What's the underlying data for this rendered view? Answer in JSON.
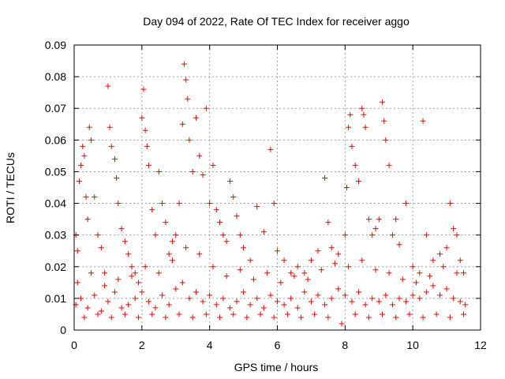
{
  "chart_data": {
    "type": "scatter",
    "title": "Day 094 of 2022, Rate Of TEC Index for receiver aggo",
    "xlabel": "GPS time / hours",
    "ylabel": "ROTI / TECUs",
    "xlim": [
      0,
      12
    ],
    "ylim": [
      0,
      0.09
    ],
    "xticks": [
      "0",
      "2",
      "4",
      "6",
      "8",
      "10",
      "12"
    ],
    "yticks": [
      "0",
      "0.01",
      "0.02",
      "0.03",
      "0.04",
      "0.05",
      "0.06",
      "0.07",
      "0.08",
      "0.09"
    ],
    "grid": true,
    "marker": "plus",
    "series": [
      {
        "color": "#ff0000",
        "points": [
          [
            0.05,
            0.03
          ],
          [
            0.1,
            0.025
          ],
          [
            0.15,
            0.047
          ],
          [
            0.2,
            0.052
          ],
          [
            0.25,
            0.058
          ],
          [
            0.3,
            0.055
          ],
          [
            0.35,
            0.042
          ],
          [
            0.4,
            0.035
          ],
          [
            0.45,
            0.064
          ],
          [
            0.5,
            0.06
          ],
          [
            0.6,
            0.042
          ],
          [
            0.7,
            0.03
          ],
          [
            0.8,
            0.026
          ],
          [
            0.9,
            0.018
          ],
          [
            1.0,
            0.077
          ],
          [
            1.05,
            0.064
          ],
          [
            1.1,
            0.058
          ],
          [
            1.2,
            0.054
          ],
          [
            1.25,
            0.048
          ],
          [
            1.3,
            0.04
          ],
          [
            1.4,
            0.032
          ],
          [
            1.5,
            0.028
          ],
          [
            1.6,
            0.024
          ],
          [
            1.7,
            0.02
          ],
          [
            1.8,
            0.018
          ],
          [
            1.9,
            0.015
          ],
          [
            2.0,
            0.067
          ],
          [
            2.05,
            0.076
          ],
          [
            2.1,
            0.063
          ],
          [
            2.15,
            0.058
          ],
          [
            2.2,
            0.052
          ],
          [
            2.3,
            0.038
          ],
          [
            2.4,
            0.03
          ],
          [
            2.5,
            0.05
          ],
          [
            2.6,
            0.04
          ],
          [
            2.7,
            0.034
          ],
          [
            2.8,
            0.024
          ],
          [
            2.9,
            0.028
          ],
          [
            3.0,
            0.03
          ],
          [
            3.1,
            0.04
          ],
          [
            3.2,
            0.065
          ],
          [
            3.25,
            0.084
          ],
          [
            3.3,
            0.079
          ],
          [
            3.35,
            0.073
          ],
          [
            3.4,
            0.06
          ],
          [
            3.5,
            0.05
          ],
          [
            3.6,
            0.067
          ],
          [
            3.7,
            0.055
          ],
          [
            3.8,
            0.049
          ],
          [
            3.9,
            0.07
          ],
          [
            4.0,
            0.04
          ],
          [
            4.1,
            0.052
          ],
          [
            4.2,
            0.038
          ],
          [
            4.3,
            0.034
          ],
          [
            4.4,
            0.03
          ],
          [
            4.5,
            0.028
          ],
          [
            4.6,
            0.047
          ],
          [
            4.7,
            0.042
          ],
          [
            4.8,
            0.036
          ],
          [
            4.9,
            0.03
          ],
          [
            5.0,
            0.026
          ],
          [
            5.2,
            0.022
          ],
          [
            5.4,
            0.039
          ],
          [
            5.6,
            0.031
          ],
          [
            5.8,
            0.057
          ],
          [
            5.9,
            0.04
          ],
          [
            6.0,
            0.025
          ],
          [
            6.2,
            0.022
          ],
          [
            6.4,
            0.018
          ],
          [
            6.6,
            0.02
          ],
          [
            6.8,
            0.018
          ],
          [
            7.0,
            0.022
          ],
          [
            7.2,
            0.025
          ],
          [
            7.4,
            0.048
          ],
          [
            7.5,
            0.034
          ],
          [
            7.6,
            0.026
          ],
          [
            7.8,
            0.024
          ],
          [
            8.0,
            0.03
          ],
          [
            8.05,
            0.045
          ],
          [
            8.1,
            0.064
          ],
          [
            8.15,
            0.068
          ],
          [
            8.2,
            0.058
          ],
          [
            8.3,
            0.052
          ],
          [
            8.4,
            0.047
          ],
          [
            8.5,
            0.07
          ],
          [
            8.55,
            0.068
          ],
          [
            8.6,
            0.064
          ],
          [
            8.7,
            0.035
          ],
          [
            8.8,
            0.03
          ],
          [
            8.9,
            0.032
          ],
          [
            9.0,
            0.035
          ],
          [
            9.1,
            0.072
          ],
          [
            9.15,
            0.066
          ],
          [
            9.2,
            0.06
          ],
          [
            9.3,
            0.052
          ],
          [
            9.4,
            0.03
          ],
          [
            9.5,
            0.035
          ],
          [
            9.6,
            0.027
          ],
          [
            9.8,
            0.04
          ],
          [
            10.0,
            0.02
          ],
          [
            10.2,
            0.018
          ],
          [
            10.3,
            0.066
          ],
          [
            10.4,
            0.03
          ],
          [
            10.6,
            0.022
          ],
          [
            10.8,
            0.024
          ],
          [
            11.0,
            0.026
          ],
          [
            11.1,
            0.04
          ],
          [
            11.2,
            0.032
          ],
          [
            11.3,
            0.03
          ],
          [
            11.4,
            0.022
          ],
          [
            11.5,
            0.018
          ],
          [
            0.05,
            0.008
          ],
          [
            0.2,
            0.01
          ],
          [
            0.4,
            0.007
          ],
          [
            0.6,
            0.011
          ],
          [
            0.8,
            0.006
          ],
          [
            1.0,
            0.009
          ],
          [
            1.2,
            0.012
          ],
          [
            1.4,
            0.007
          ],
          [
            1.6,
            0.008
          ],
          [
            1.8,
            0.01
          ],
          [
            2.0,
            0.012
          ],
          [
            2.2,
            0.009
          ],
          [
            2.4,
            0.007
          ],
          [
            2.6,
            0.011
          ],
          [
            2.8,
            0.008
          ],
          [
            3.0,
            0.013
          ],
          [
            3.2,
            0.015
          ],
          [
            3.4,
            0.01
          ],
          [
            3.6,
            0.012
          ],
          [
            3.8,
            0.009
          ],
          [
            4.0,
            0.011
          ],
          [
            4.2,
            0.008
          ],
          [
            4.4,
            0.01
          ],
          [
            4.6,
            0.007
          ],
          [
            4.8,
            0.009
          ],
          [
            5.0,
            0.012
          ],
          [
            5.2,
            0.008
          ],
          [
            5.4,
            0.01
          ],
          [
            5.6,
            0.007
          ],
          [
            5.8,
            0.011
          ],
          [
            6.0,
            0.009
          ],
          [
            6.2,
            0.008
          ],
          [
            6.4,
            0.01
          ],
          [
            6.6,
            0.007
          ],
          [
            6.8,
            0.012
          ],
          [
            7.0,
            0.009
          ],
          [
            7.2,
            0.011
          ],
          [
            7.4,
            0.008
          ],
          [
            7.6,
            0.01
          ],
          [
            7.8,
            0.013
          ],
          [
            8.0,
            0.011
          ],
          [
            8.2,
            0.009
          ],
          [
            8.4,
            0.012
          ],
          [
            8.6,
            0.008
          ],
          [
            8.8,
            0.01
          ],
          [
            9.0,
            0.009
          ],
          [
            9.2,
            0.011
          ],
          [
            9.4,
            0.008
          ],
          [
            9.6,
            0.01
          ],
          [
            9.8,
            0.009
          ],
          [
            10.0,
            0.011
          ],
          [
            10.2,
            0.01
          ],
          [
            10.4,
            0.012
          ],
          [
            10.6,
            0.014
          ],
          [
            10.8,
            0.011
          ],
          [
            11.0,
            0.013
          ],
          [
            11.2,
            0.01
          ],
          [
            11.4,
            0.009
          ],
          [
            11.55,
            0.008
          ],
          [
            0.1,
            0.015
          ],
          [
            0.5,
            0.018
          ],
          [
            0.9,
            0.014
          ],
          [
            1.3,
            0.016
          ],
          [
            1.7,
            0.017
          ],
          [
            2.1,
            0.02
          ],
          [
            2.5,
            0.018
          ],
          [
            2.9,
            0.022
          ],
          [
            3.3,
            0.026
          ],
          [
            3.7,
            0.024
          ],
          [
            4.1,
            0.02
          ],
          [
            4.5,
            0.017
          ],
          [
            4.9,
            0.019
          ],
          [
            5.3,
            0.016
          ],
          [
            5.7,
            0.018
          ],
          [
            6.1,
            0.015
          ],
          [
            6.5,
            0.017
          ],
          [
            6.9,
            0.016
          ],
          [
            7.3,
            0.019
          ],
          [
            7.7,
            0.021
          ],
          [
            8.1,
            0.02
          ],
          [
            8.5,
            0.022
          ],
          [
            8.9,
            0.019
          ],
          [
            9.3,
            0.018
          ],
          [
            9.7,
            0.016
          ],
          [
            10.1,
            0.015
          ],
          [
            10.5,
            0.017
          ],
          [
            10.9,
            0.02
          ],
          [
            11.3,
            0.018
          ],
          [
            0.3,
            0.004
          ],
          [
            0.7,
            0.005
          ],
          [
            1.1,
            0.004
          ],
          [
            1.5,
            0.005
          ],
          [
            1.9,
            0.004
          ],
          [
            2.3,
            0.005
          ],
          [
            2.7,
            0.004
          ],
          [
            3.1,
            0.005
          ],
          [
            3.5,
            0.004
          ],
          [
            3.9,
            0.005
          ],
          [
            4.3,
            0.004
          ],
          [
            4.7,
            0.005
          ],
          [
            5.1,
            0.004
          ],
          [
            5.5,
            0.005
          ],
          [
            5.9,
            0.004
          ],
          [
            6.3,
            0.005
          ],
          [
            6.7,
            0.004
          ],
          [
            7.1,
            0.005
          ],
          [
            7.5,
            0.004
          ],
          [
            7.9,
            0.002
          ],
          [
            8.3,
            0.005
          ],
          [
            8.7,
            0.004
          ],
          [
            9.1,
            0.005
          ],
          [
            9.5,
            0.004
          ],
          [
            9.9,
            0.005
          ],
          [
            10.3,
            0.004
          ],
          [
            10.7,
            0.005
          ],
          [
            11.1,
            0.004
          ],
          [
            11.5,
            0.005
          ]
        ]
      }
    ]
  }
}
